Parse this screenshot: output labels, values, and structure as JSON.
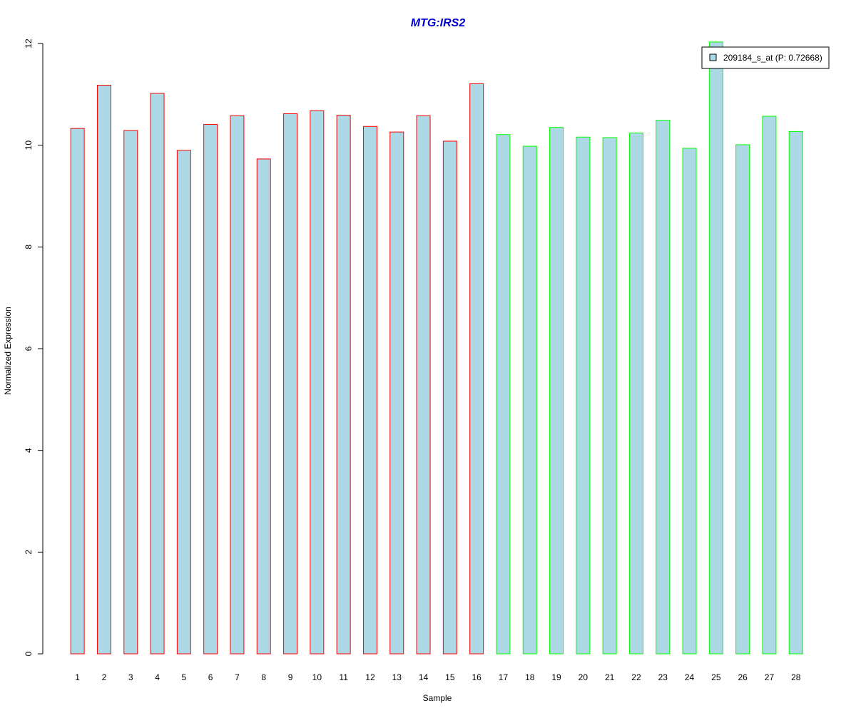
{
  "chart_data": {
    "type": "bar",
    "title": "MTG:IRS2",
    "xlabel": "Sample",
    "ylabel": "Normalized Expression",
    "ylim": [
      0,
      12
    ],
    "y_ticks": [
      0,
      2,
      4,
      6,
      8,
      10,
      12
    ],
    "grid": false,
    "legend_position": "top-right",
    "categories": [
      "1",
      "2",
      "3",
      "4",
      "5",
      "6",
      "7",
      "8",
      "9",
      "10",
      "11",
      "12",
      "13",
      "14",
      "15",
      "16",
      "17",
      "18",
      "19",
      "20",
      "21",
      "22",
      "23",
      "24",
      "25",
      "26",
      "27",
      "28"
    ],
    "series": [
      {
        "name": "209184_s_at (P: 0.72668)",
        "values": [
          10.33,
          11.18,
          10.29,
          11.02,
          9.9,
          10.41,
          10.58,
          9.73,
          10.62,
          10.68,
          10.59,
          10.37,
          10.26,
          10.58,
          10.08,
          11.21,
          10.21,
          9.98,
          10.35,
          10.16,
          10.15,
          10.24,
          10.49,
          9.94,
          12.03,
          10.01,
          10.57,
          10.27
        ],
        "fill_color": "#add8e6"
      }
    ],
    "groups": [
      {
        "range": [
          1,
          16
        ],
        "border_color": "#ff0000"
      },
      {
        "range": [
          17,
          28
        ],
        "border_color": "#00ff00"
      }
    ],
    "colors": {
      "title": "#0000cc"
    }
  }
}
